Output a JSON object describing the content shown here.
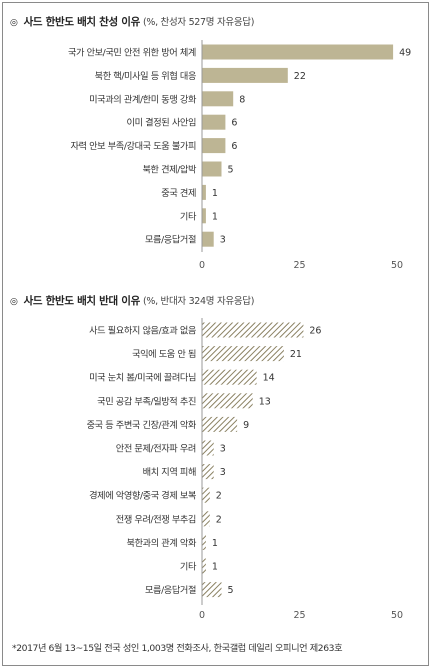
{
  "footnote": "*2017년 6월 13~15일 전국 성인 1,003명 전화조사, 한국갤럽 데일리 오피니언 제263호",
  "colors": {
    "support_bar": "#bdb594",
    "oppose_hatch": "#8a8162",
    "axis": "#999999"
  },
  "chart_data": [
    {
      "type": "bar",
      "orientation": "horizontal",
      "marker": "◎",
      "title": "사드 한반도 배치 찬성 이유",
      "subtitle": "(%, 찬성자 527명 자유응답)",
      "fill": "solid",
      "categories": [
        "국가 안보/국민 안전 위한 방어 체계",
        "북한 핵/미사일 등 위협 대응",
        "미국과의 관계/한미 동맹 강화",
        "이미 결정된 사안임",
        "자력 안보 부족/강대국 도움 불가피",
        "북한 견제/압박",
        "중국 견제",
        "기타",
        "모름/응답거절"
      ],
      "values": [
        49,
        22,
        8,
        6,
        6,
        5,
        1,
        1,
        3
      ],
      "xlim": [
        0,
        50
      ],
      "xticks": [
        "0",
        "25",
        "50"
      ],
      "grid": false
    },
    {
      "type": "bar",
      "orientation": "horizontal",
      "marker": "◎",
      "title": "사드 한반도 배치 반대 이유",
      "subtitle": "(%, 반대자 324명 자유응답)",
      "fill": "hatched",
      "categories": [
        "사드 필요하지 않음/효과 없음",
        "국익에 도움 안 됨",
        "미국 눈치 봄/미국에 끌려다님",
        "국민 공감 부족/일방적 추진",
        "중국 등 주변국 긴장/관계 악화",
        "안전 문제/전자파 우려",
        "배치 지역 피해",
        "경제에 악영향/중국 경제 보복",
        "전쟁 우려/전쟁 부추김",
        "북한과의 관계 악화",
        "기타",
        "모름/응답거절"
      ],
      "values": [
        26,
        21,
        14,
        13,
        9,
        3,
        3,
        2,
        2,
        1,
        1,
        5
      ],
      "xlim": [
        0,
        50
      ],
      "xticks": [
        "0",
        "25",
        "50"
      ],
      "grid": false
    }
  ]
}
